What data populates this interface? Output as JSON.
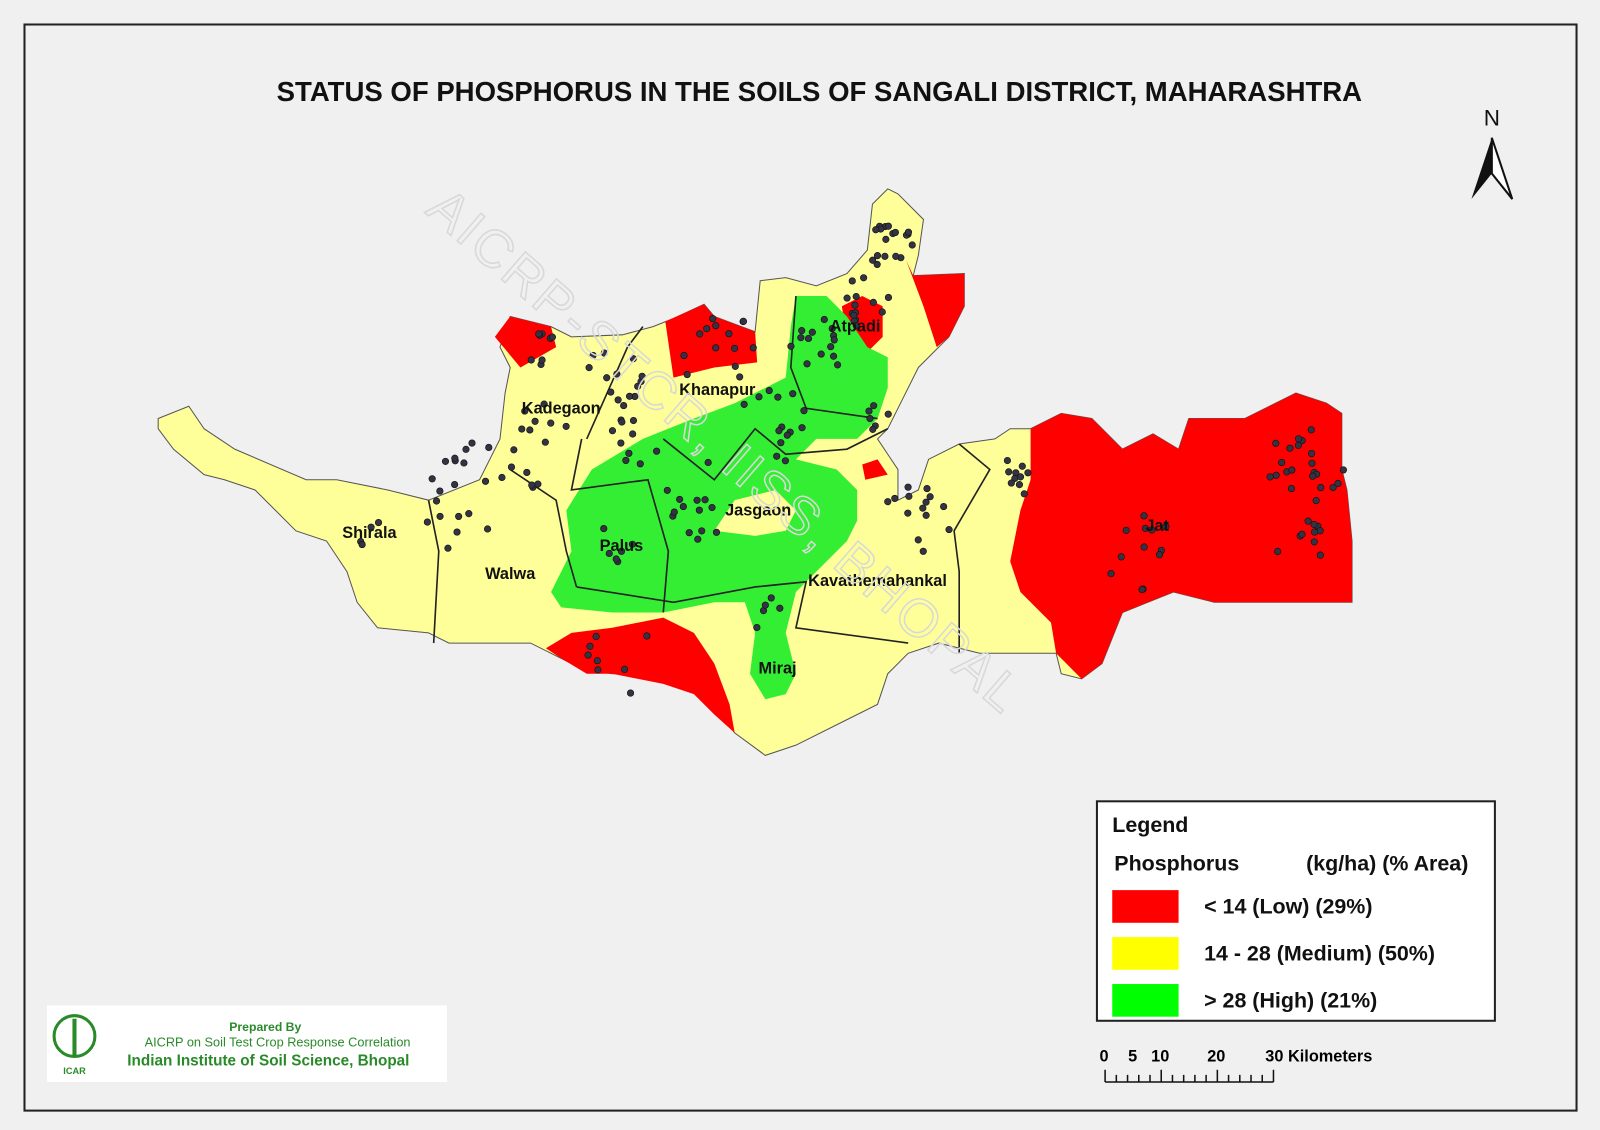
{
  "title": "STATUS OF PHOSPHORUS IN THE SOILS OF SANGALI  DISTRICT, MAHARASHTRA",
  "north": "N",
  "watermark": "AICRP-STCR, IISS, BHOPAL",
  "districts": [
    "Atpadi",
    "Khanapur",
    "Kadegaon",
    "Jasgaon",
    "Shirala",
    "Walwa",
    "Palus",
    "Kavathemahankal",
    "Miraj",
    "Jat"
  ],
  "legend": {
    "title": "Legend",
    "parameter": "Phosphorus",
    "units": "(kg/ha) (% Area)",
    "entries": [
      {
        "label": "< 14 (Low) (29%)",
        "color": "#ff0000"
      },
      {
        "label": "14 - 28 (Medium) (50%)",
        "color": "#ffff00"
      },
      {
        "label": "> 28 (High) (21%)",
        "color": "#00ff00"
      }
    ]
  },
  "scale_bar": [
    "0",
    "5",
    "10",
    "20",
    "30 Kilometers"
  ],
  "credits": [
    "Prepared By",
    "AICRP on Soil Test Crop Response Correlation",
    "Indian Institute of Soil Science, Bhopal"
  ],
  "logo_text": "ICAR"
}
